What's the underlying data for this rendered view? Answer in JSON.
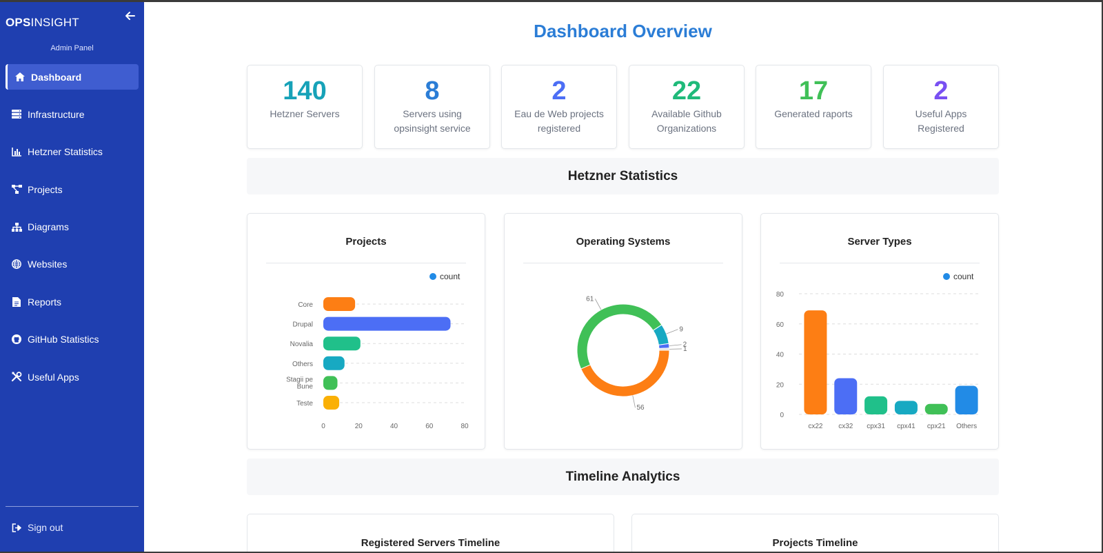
{
  "sidebar": {
    "brand_bold": "OPS",
    "brand_rest": "INSIGHT",
    "subtitle": "Admin Panel",
    "items": [
      {
        "label": "Dashboard",
        "icon": "home-icon",
        "active": true
      },
      {
        "label": "Infrastructure",
        "icon": "server-icon"
      },
      {
        "label": "Hetzner Statistics",
        "icon": "bar-chart-icon"
      },
      {
        "label": "Projects",
        "icon": "project-diagram-icon"
      },
      {
        "label": "Diagrams",
        "icon": "sitemap-icon"
      },
      {
        "label": "Websites",
        "icon": "globe-icon"
      },
      {
        "label": "Reports",
        "icon": "file-icon"
      },
      {
        "label": "GitHub Statistics",
        "icon": "github-icon"
      },
      {
        "label": "Useful Apps",
        "icon": "tools-icon"
      }
    ],
    "signout": "Sign out"
  },
  "main": {
    "title": "Dashboard Overview",
    "stats": [
      {
        "value": "140",
        "label": "Hetzner Servers",
        "color": "#17a2b8"
      },
      {
        "value": "8",
        "label": "Servers using opsinsight service",
        "color": "#2b7dd6"
      },
      {
        "value": "2",
        "label": "Eau de Web projects registered",
        "color": "#4c6ef5"
      },
      {
        "value": "22",
        "label": "Available Github Organizations",
        "color": "#1fba7a"
      },
      {
        "value": "17",
        "label": "Generated raports",
        "color": "#40c057"
      },
      {
        "value": "2",
        "label": "Useful Apps Registered",
        "color": "#7950f2"
      }
    ],
    "section_hetzner": "Hetzner Statistics",
    "section_timeline": "Timeline Analytics",
    "timeline_cards": [
      "Registered Servers Timeline",
      "Projects Timeline"
    ]
  },
  "chart_data": [
    {
      "type": "bar",
      "orientation": "horizontal",
      "title": "Projects",
      "legend": "count",
      "legend_position": "top-right",
      "categories": [
        "Core",
        "Drupal",
        "Novalia",
        "Others",
        "Stagii pe Bune",
        "Teste"
      ],
      "values": [
        18,
        72,
        21,
        12,
        8,
        9
      ],
      "colors": [
        "#fd7e14",
        "#4c6ef5",
        "#20c08a",
        "#17a9c2",
        "#40c057",
        "#fab005"
      ],
      "xlim": [
        0,
        80
      ],
      "xticks": [
        "0",
        "20",
        "40",
        "60",
        "80"
      ],
      "grid": true
    },
    {
      "type": "pie",
      "variant": "donut",
      "title": "Operating Systems",
      "slices": [
        {
          "value": 56,
          "color": "#fd7e14"
        },
        {
          "value": 61,
          "color": "#40c057"
        },
        {
          "value": 9,
          "color": "#17a9c2"
        },
        {
          "value": 2,
          "color": "#4c6ef5"
        },
        {
          "value": 1,
          "color": "#e0e0e0"
        }
      ],
      "labels": [
        "56",
        "61",
        "9",
        "2",
        "1"
      ]
    },
    {
      "type": "bar",
      "title": "Server Types",
      "legend": "count",
      "legend_position": "top-right",
      "categories": [
        "cx22",
        "cx32",
        "cpx31",
        "cpx41",
        "cpx21",
        "Others"
      ],
      "values": [
        69,
        24,
        12,
        9,
        7,
        19
      ],
      "colors": [
        "#fd7e14",
        "#4c6ef5",
        "#20c08a",
        "#17a9c2",
        "#40c057",
        "#228be6"
      ],
      "ylim": [
        0,
        80
      ],
      "yticks": [
        "0",
        "20",
        "40",
        "60",
        "80"
      ],
      "grid": true
    }
  ]
}
